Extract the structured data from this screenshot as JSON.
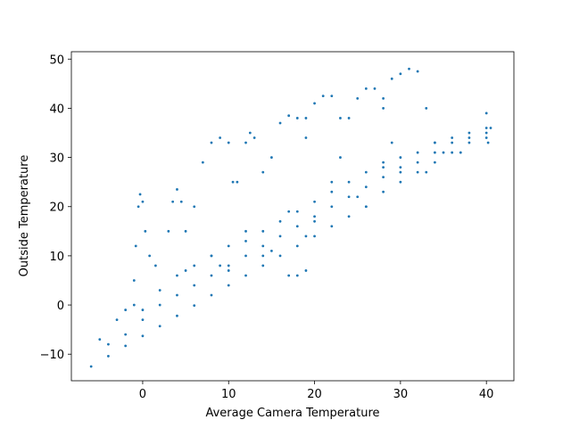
{
  "chart_data": {
    "type": "scatter",
    "xlabel": "Average Camera Temperature",
    "ylabel": "Outside Temperature",
    "color": "#1f77b4",
    "xlim": [
      -8.3,
      43.2
    ],
    "ylim": [
      -15.4,
      51.5
    ],
    "xticks": [
      0,
      10,
      20,
      30,
      40
    ],
    "yticks": [
      {
        "value": -10,
        "label": "−10"
      },
      0,
      10,
      20,
      30,
      40,
      50
    ],
    "x": [
      -6,
      -4,
      -4,
      -2,
      -2,
      0,
      0,
      2,
      2,
      2,
      4,
      4,
      4,
      6,
      6,
      6,
      8,
      8,
      8,
      10,
      10,
      10,
      12,
      12,
      12,
      14,
      14,
      14,
      16,
      16,
      16,
      18,
      18,
      18,
      20,
      20,
      20,
      22,
      22,
      22,
      24,
      24,
      24,
      26,
      26,
      26,
      28,
      28,
      28,
      30,
      30,
      30,
      32,
      32,
      32,
      34,
      34,
      34,
      36,
      36,
      36,
      38,
      38,
      38,
      40,
      40,
      40,
      -1,
      -0.8,
      -0.5,
      -0.3,
      0,
      0.3,
      0.8,
      1.5,
      -5,
      -3,
      -2,
      -1,
      0,
      3,
      3.5,
      4,
      4.5,
      5,
      6,
      7,
      8,
      9,
      10,
      10.5,
      11,
      12,
      12.5,
      13,
      14,
      15,
      16,
      17,
      18,
      19,
      19,
      20,
      21,
      22,
      23,
      23,
      24,
      25,
      26,
      27,
      28,
      29,
      28,
      29,
      30,
      31,
      32,
      33,
      34,
      17,
      18,
      19,
      40,
      40.5,
      40.2,
      10,
      14,
      20,
      25,
      30,
      35,
      8,
      12,
      17,
      22,
      28,
      5,
      9,
      15,
      19,
      26,
      33,
      37
    ],
    "y": [
      -12.5,
      -10.4,
      -8,
      -8.3,
      -6,
      -6.3,
      -3,
      -4.3,
      0,
      3,
      -2.2,
      2,
      6,
      -0.1,
      4,
      8,
      2,
      6,
      10,
      4,
      8,
      12,
      6,
      10,
      13,
      8,
      12,
      15,
      10,
      14,
      17,
      12,
      16,
      19,
      14,
      18,
      21,
      16,
      20,
      23,
      18,
      22,
      25,
      20,
      24,
      27,
      23,
      26,
      28,
      25,
      28,
      30,
      27,
      29,
      31,
      29,
      31,
      33,
      31,
      33,
      34,
      33,
      34,
      35,
      34,
      35,
      36,
      5,
      12,
      20,
      22.5,
      21,
      15,
      10,
      8,
      -7,
      -3,
      -1,
      0,
      -1,
      15,
      21,
      23.5,
      21,
      15,
      20,
      29,
      33,
      34,
      33,
      25,
      25,
      33,
      35,
      34,
      27,
      30,
      37,
      38.5,
      38,
      34,
      38,
      41,
      42.5,
      42.5,
      38,
      30,
      38,
      42,
      44,
      44,
      40,
      33,
      42,
      46,
      47,
      48,
      47.5,
      40,
      33,
      6,
      6,
      7,
      39,
      36,
      33,
      7,
      10,
      17,
      22,
      27,
      31,
      10,
      15,
      19,
      25,
      29,
      7,
      8,
      11,
      14,
      20,
      27,
      31
    ]
  }
}
